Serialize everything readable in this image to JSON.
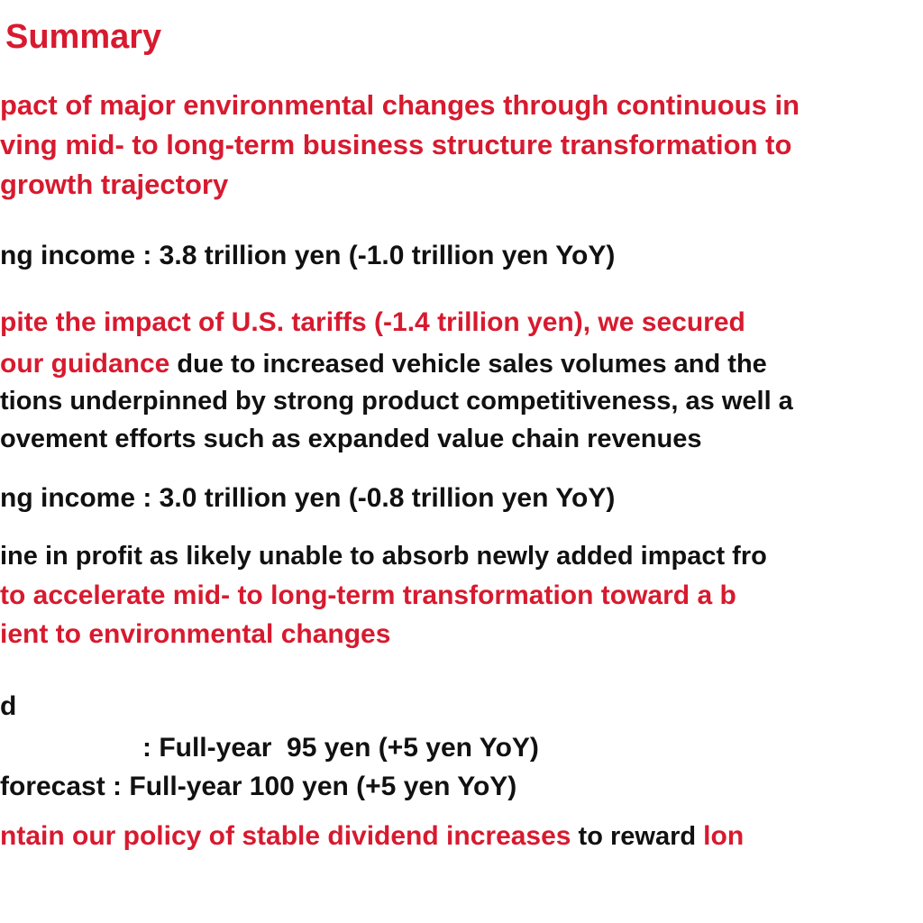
{
  "page": {
    "title": "Summary",
    "headline": [
      "pact of major environmental changes through continuous in",
      "ving mid- to long-term business structure transformation to",
      "growth trajectory"
    ],
    "results": {
      "operating_income": "ng income : 3.8 trillion yen (-1.0 trillion yen YoY)",
      "line1": "pite the impact of U.S. tariffs (-1.4 trillion yen), we secured",
      "line2_red": "our guidance",
      "line2_black": " due to increased vehicle sales volumes and the",
      "line3": "tions underpinned by strong product competitiveness, as well a",
      "line4": "ovement efforts such as expanded value chain revenues"
    },
    "forecast": {
      "operating_income": "ng income : 3.0 trillion yen (-0.8 trillion yen YoY)",
      "line1": "ine in profit as likely unable to absorb newly added impact fro",
      "line2": "to accelerate mid- to long-term transformation toward a b",
      "line3": "ient to environmental changes"
    },
    "dividend": {
      "heading": "d",
      "line1": ": Full-year  95 yen (+5 yen YoY)",
      "line2": "forecast : Full-year 100 yen (+5 yen YoY)",
      "line3_red": "ntain our policy of stable dividend increases",
      "line3_black": " to reward ",
      "line3_tail": "lon"
    },
    "colors": {
      "accent": "#d71a2f",
      "text": "#111111"
    }
  }
}
